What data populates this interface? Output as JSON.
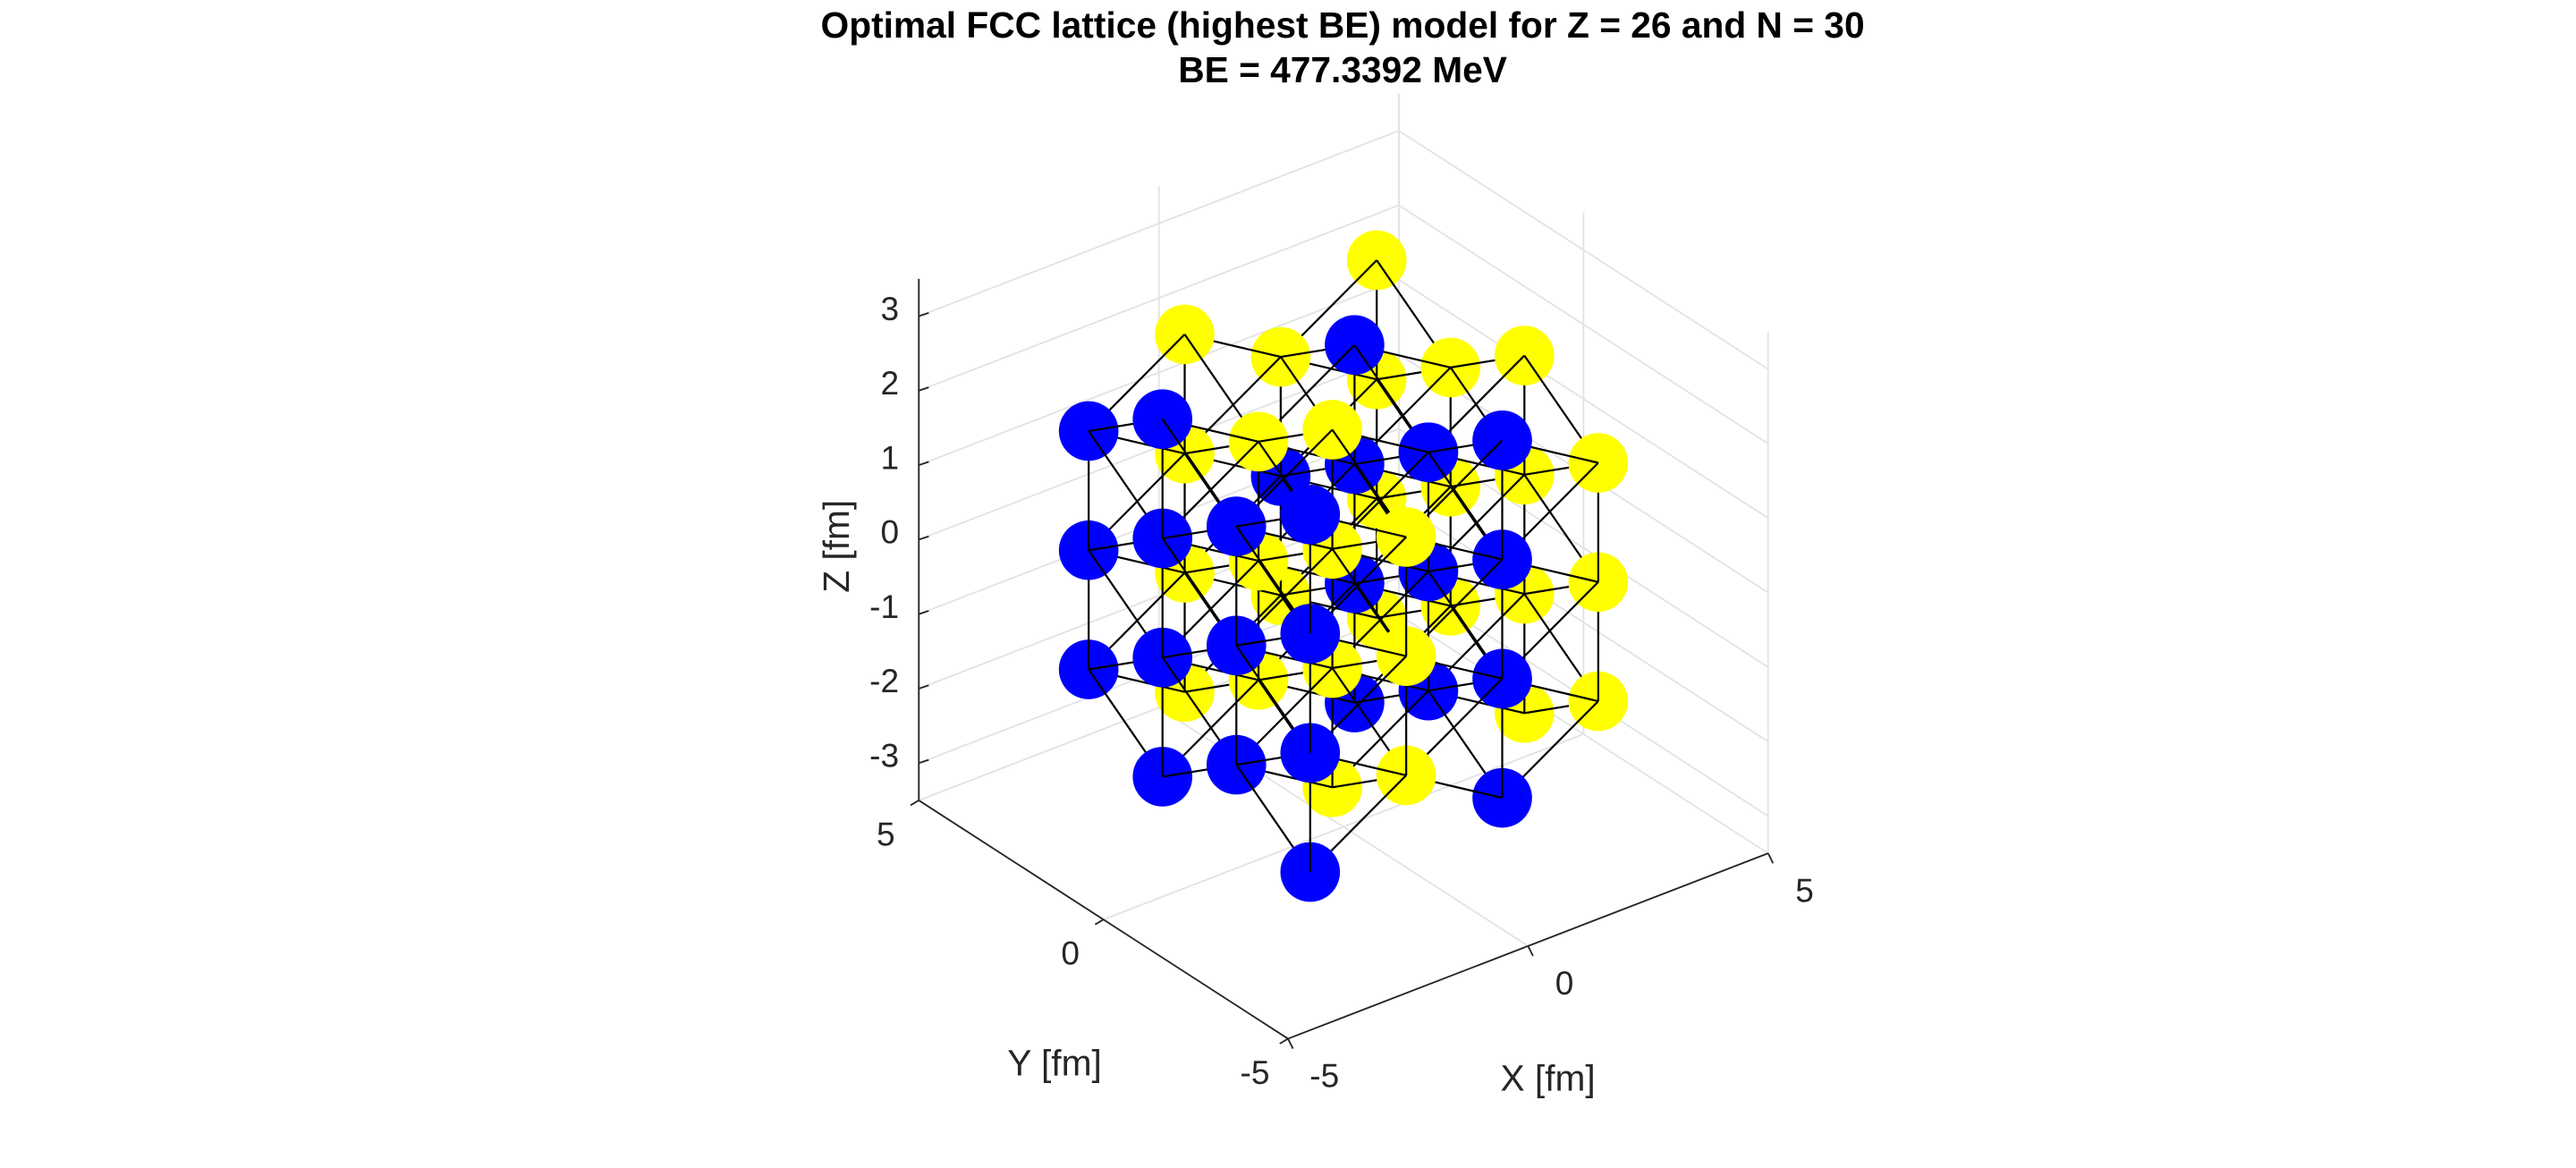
{
  "chart_data": {
    "type": "scatter3",
    "title": "Optimal FCC lattice (highest BE) model for Z = 26 and N = 30",
    "subtitle": "BE = 477.3392 MeV",
    "xlabel": "X [fm]",
    "ylabel": "Y [fm]",
    "zlabel": "Z [fm]",
    "xlim": [
      -5,
      5
    ],
    "ylim": [
      -5,
      5
    ],
    "zlim": [
      -3.5,
      3.5
    ],
    "xticks": [
      -5,
      0,
      5
    ],
    "yticks": [
      -5,
      0,
      5
    ],
    "zticks": [
      -3,
      -2,
      -1,
      0,
      1,
      2,
      3
    ],
    "grid": true,
    "series": [
      {
        "color": "#0000ff",
        "x": [
          -3,
          -3,
          -3,
          -3,
          -3,
          -3,
          -3,
          -3,
          -3,
          -3,
          -3,
          -3,
          -3,
          -3,
          1,
          1,
          1,
          1,
          1,
          1,
          1,
          1,
          1,
          1,
          1,
          1
        ],
        "y": [
          -3,
          -3,
          -3,
          -3,
          -1,
          -1,
          -1,
          1,
          1,
          1,
          1,
          3,
          3,
          3,
          -3,
          -3,
          -3,
          -3,
          -1,
          -1,
          -1,
          1,
          1,
          1,
          1,
          3
        ],
        "z": [
          -2.4,
          -0.8,
          0.8,
          2.4,
          -1.6,
          0,
          1.6,
          -2.4,
          -0.8,
          0.8,
          2.4,
          -1.6,
          0,
          1.6,
          -2.4,
          -0.8,
          0.8,
          2.4,
          -1.6,
          0,
          1.6,
          -2.4,
          -0.8,
          0.8,
          2.4,
          0
        ]
      },
      {
        "color": "#ffff00",
        "x": [
          -1,
          -1,
          -1,
          -1,
          -1,
          -1,
          -1,
          -1,
          -1,
          -1,
          -1,
          -1,
          -1,
          -1,
          3,
          3,
          3,
          3,
          3,
          3,
          3,
          3,
          3,
          3,
          3,
          3,
          3,
          3,
          1,
          1
        ],
        "y": [
          -3,
          -3,
          -3,
          -1,
          -1,
          -1,
          -1,
          1,
          1,
          1,
          3,
          3,
          3,
          3,
          -3,
          -3,
          -3,
          -1,
          -1,
          -1,
          -1,
          1,
          1,
          1,
          3,
          3,
          3,
          3,
          3,
          3
        ],
        "z": [
          -1.6,
          0,
          1.6,
          -2.4,
          -0.8,
          0.8,
          2.4,
          -1.6,
          0,
          1.6,
          -2.4,
          -0.8,
          0.8,
          2.4,
          -1.6,
          0,
          1.6,
          -2.4,
          -0.8,
          0.8,
          2.4,
          -1.6,
          0,
          1.6,
          -2.4,
          -0.8,
          0.8,
          2.4,
          -1.6,
          1.6
        ]
      }
    ]
  }
}
